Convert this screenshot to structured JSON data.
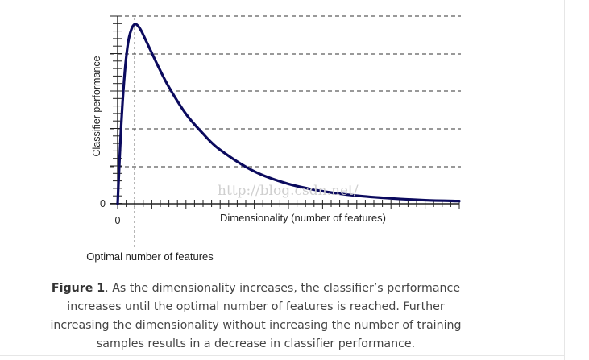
{
  "chart_data": {
    "type": "line",
    "title": "",
    "xlabel": "Dimensionality (number of features)",
    "ylabel": "Classifier performance",
    "x_tick_labels": [
      "0"
    ],
    "y_tick_labels": [
      "0"
    ],
    "annotation": "Optimal number of features",
    "grid": "horizontal dashed",
    "series": [
      {
        "color": "#0b0a5e",
        "x": [
          0,
          0.01,
          0.02,
          0.03,
          0.04,
          0.05,
          0.06,
          0.07,
          0.08,
          0.1,
          0.12,
          0.15,
          0.2,
          0.25,
          0.3,
          0.4,
          0.5,
          0.6,
          0.7,
          0.8,
          0.9,
          1.0
        ],
        "y": [
          0,
          0.42,
          0.71,
          0.89,
          0.97,
          1.0,
          0.99,
          0.96,
          0.92,
          0.84,
          0.76,
          0.65,
          0.5,
          0.39,
          0.3,
          0.18,
          0.11,
          0.07,
          0.045,
          0.03,
          0.02,
          0.015
        ]
      }
    ]
  },
  "watermark": "http://blog.csdn.net/",
  "caption": {
    "label": "Figure 1",
    "text": ". As the dimensionality increases, the classifier’s performance increases until the optimal number of features is reached. Further increasing the dimensionality without increasing the number of training samples results in a decrease in classifier performance."
  }
}
